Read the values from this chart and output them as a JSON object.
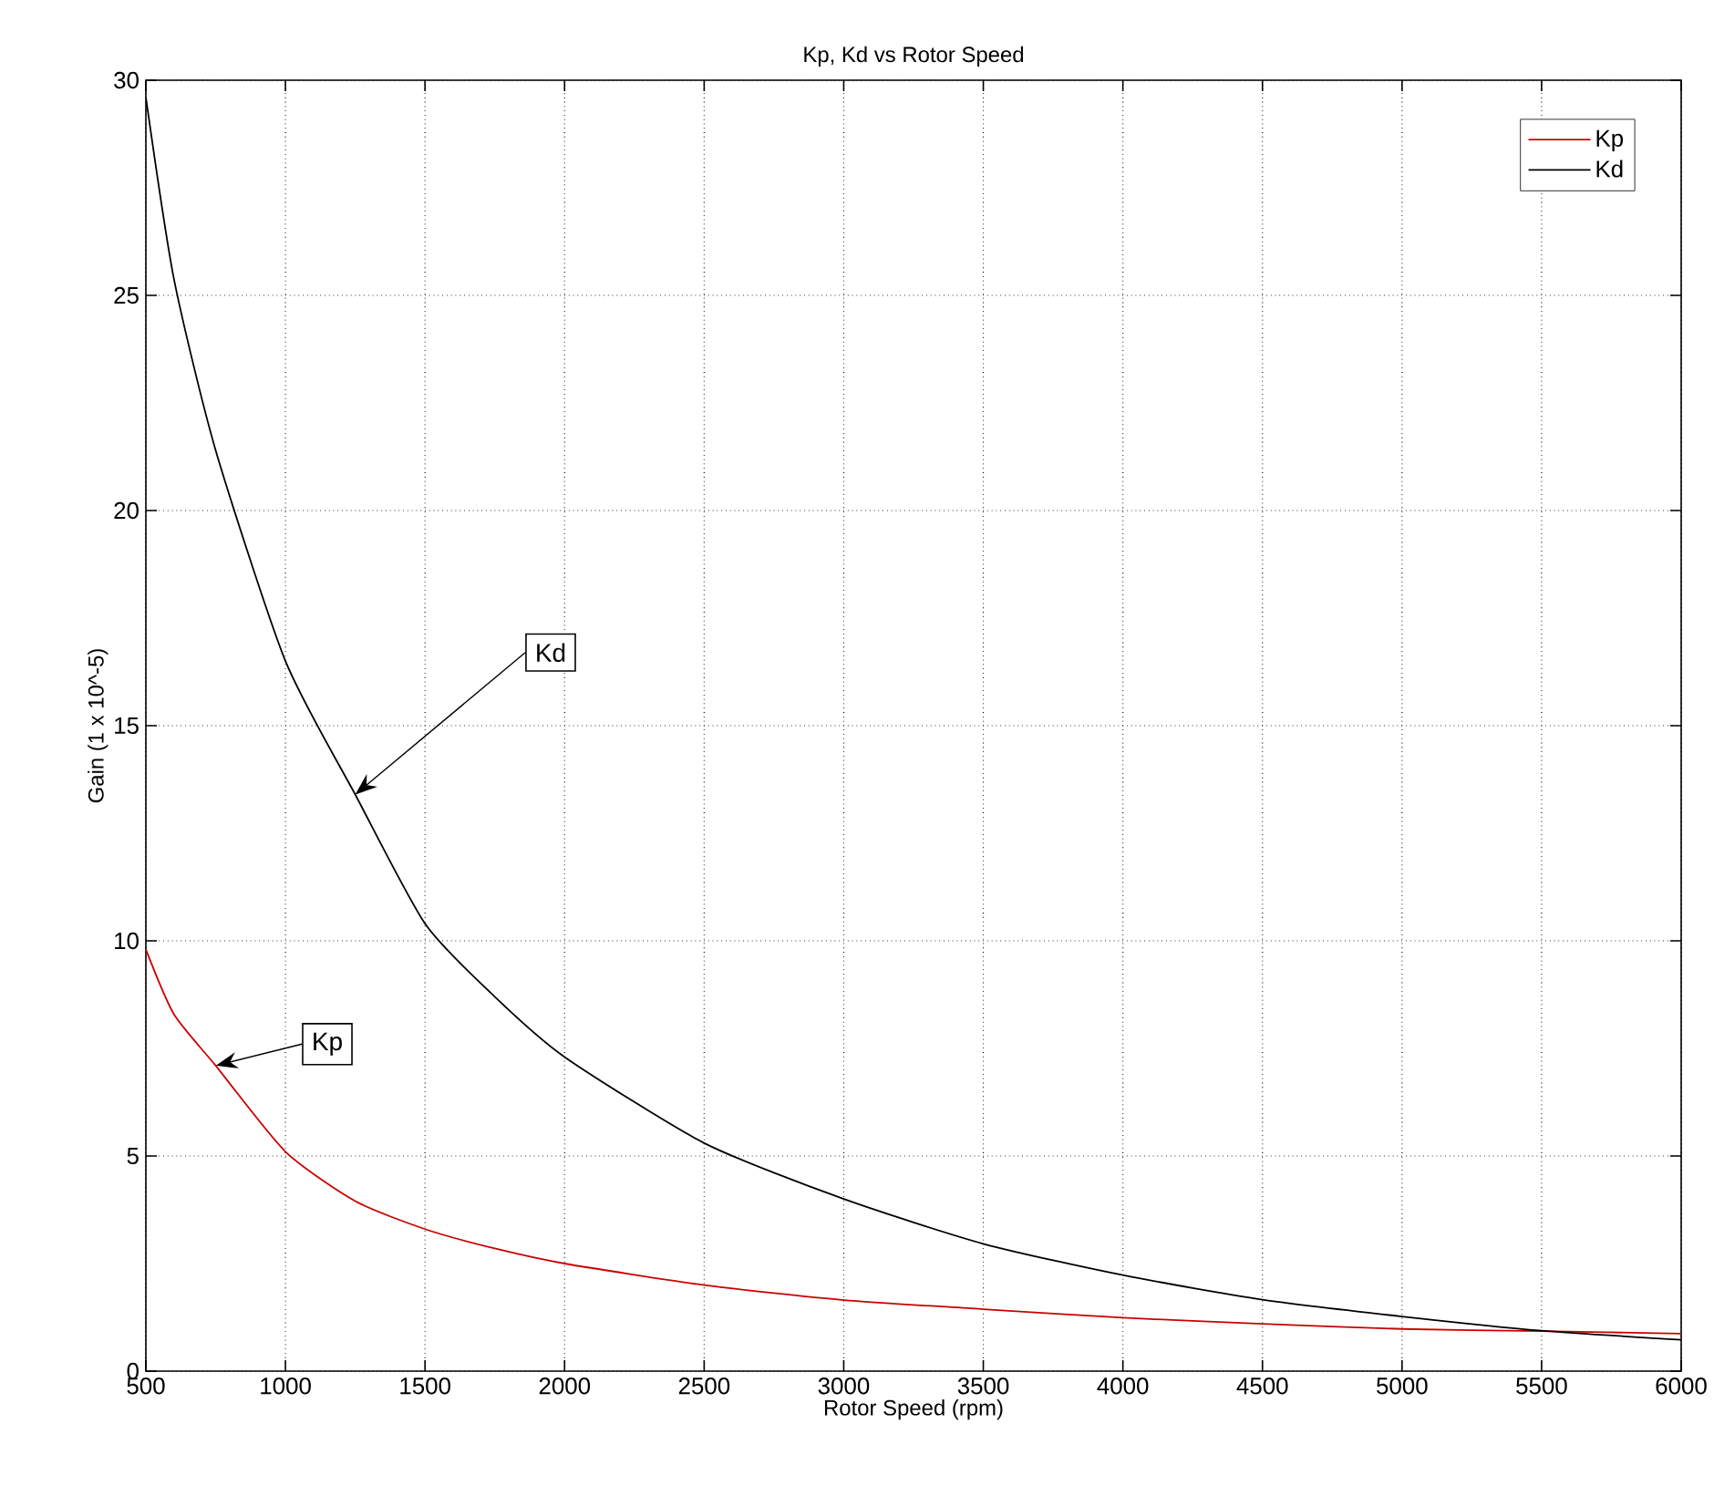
{
  "chart_data": {
    "type": "line",
    "title": "Kp, Kd vs Rotor Speed",
    "xlabel": "Rotor Speed (rpm)",
    "ylabel": "Gain (1 x 10^-5)",
    "x": [
      500,
      600,
      750,
      1000,
      1250,
      1500,
      1750,
      2000,
      2500,
      3000,
      3500,
      4000,
      4500,
      5000,
      5500,
      6000
    ],
    "series": [
      {
        "name": "Kp",
        "color": "#cc0000",
        "values": [
          9.8,
          8.3,
          7.1,
          5.1,
          3.95,
          3.3,
          2.85,
          2.5,
          2.0,
          1.65,
          1.44,
          1.24,
          1.1,
          0.98,
          0.93,
          0.87
        ]
      },
      {
        "name": "Kd",
        "color": "#000000",
        "values": [
          29.6,
          25.4,
          21.4,
          16.5,
          13.4,
          10.4,
          8.7,
          7.3,
          5.3,
          4.0,
          2.96,
          2.23,
          1.66,
          1.27,
          0.94,
          0.73
        ]
      }
    ],
    "xlim": [
      500,
      6000
    ],
    "ylim": [
      0,
      30
    ],
    "xticks": [
      500,
      1000,
      1500,
      2000,
      2500,
      3000,
      3500,
      4000,
      4500,
      5000,
      5500,
      6000
    ],
    "yticks": [
      0,
      5,
      10,
      15,
      20,
      25,
      30
    ],
    "grid": true,
    "legend": "top right",
    "marker": "none",
    "line_style": "solid",
    "annotations": [
      {
        "text": "Kd",
        "x": 1250,
        "y": 13.4
      },
      {
        "text": "Kp",
        "x": 750,
        "y": 7.1
      }
    ]
  }
}
